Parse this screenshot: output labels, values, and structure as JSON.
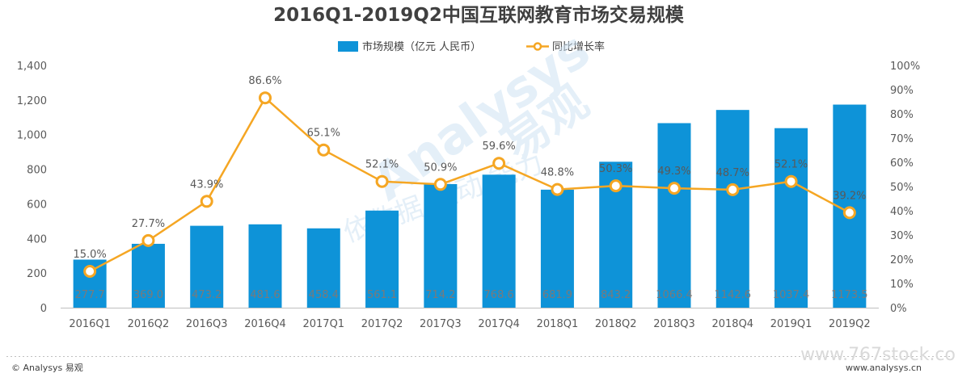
{
  "chart_data": {
    "type": "bar",
    "title": "2016Q1-2019Q2中国互联网教育市场交易规模",
    "categories": [
      "2016Q1",
      "2016Q2",
      "2016Q3",
      "2016Q4",
      "2017Q1",
      "2017Q2",
      "2017Q3",
      "2017Q4",
      "2018Q1",
      "2018Q2",
      "2018Q3",
      "2018Q4",
      "2019Q1",
      "2019Q2"
    ],
    "series": [
      {
        "name": "市场规模（亿元 人民币）",
        "kind": "bar",
        "axis": "left",
        "color": "#0e93d8",
        "values": [
          277.7,
          369.0,
          473.2,
          481.6,
          458.4,
          561.1,
          714.2,
          768.6,
          681.9,
          843.2,
          1066.4,
          1142.6,
          1037.4,
          1173.5
        ],
        "labels": [
          "277.7",
          "369.0",
          "473.2",
          "481.6",
          "458.4",
          "561.1",
          "714.2",
          "768.6",
          "681.9",
          "843.2",
          "1066.4",
          "1142.6",
          "1037.4",
          "1173.5"
        ]
      },
      {
        "name": "同比增长率",
        "kind": "line",
        "axis": "right",
        "color": "#f5a623",
        "values": [
          15.0,
          27.7,
          43.9,
          86.6,
          65.1,
          52.1,
          50.9,
          59.6,
          48.8,
          50.3,
          49.3,
          48.7,
          52.1,
          39.2
        ],
        "labels": [
          "15.0%",
          "27.7%",
          "43.9%",
          "86.6%",
          "65.1%",
          "52.1%",
          "50.9%",
          "59.6%",
          "48.8%",
          "50.3%",
          "49.3%",
          "48.7%",
          "52.1%",
          "39.2%"
        ]
      }
    ],
    "y_left": {
      "lim": [
        0,
        1400
      ],
      "ticks": [
        "0",
        "200",
        "400",
        "600",
        "800",
        "1,000",
        "1,200",
        "1,400"
      ]
    },
    "y_right": {
      "lim": [
        0,
        100
      ],
      "ticks": [
        "0%",
        "10%",
        "20%",
        "30%",
        "40%",
        "50%",
        "60%",
        "70%",
        "80%",
        "90%",
        "100%"
      ]
    },
    "grid": false,
    "legend_position": "top-center"
  },
  "watermark": {
    "brand": "Analysys",
    "brand_cn": "易观",
    "slogan": "依数据 驱动 能力"
  },
  "footer": {
    "left": "© Analysys 易观",
    "right": "www.analysys.cn",
    "source": "www.767stock.co"
  }
}
